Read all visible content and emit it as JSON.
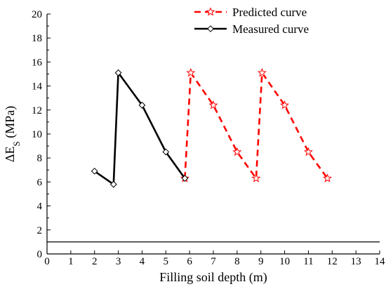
{
  "chart_data": {
    "type": "line",
    "xlabel": "Filling soil depth (m)",
    "ylabel": {
      "prefix": "ΔE",
      "subscript": "S",
      "suffix": " (MPa)"
    },
    "xlim": [
      0,
      14
    ],
    "ylim": [
      0,
      20
    ],
    "x_ticks": [
      "0",
      "1",
      "2",
      "3",
      "4",
      "5",
      "6",
      "7",
      "8",
      "9",
      "10",
      "11",
      "12",
      "13",
      "14"
    ],
    "y_ticks": [
      "0",
      "2",
      "4",
      "6",
      "8",
      "10",
      "12",
      "14",
      "16",
      "18",
      "20"
    ],
    "grid": false,
    "legend_position": "top-right",
    "series": [
      {
        "name": "Predicted curve",
        "color": "#ff0000",
        "line_style": "dashed",
        "marker": "star-icon",
        "x": [
          5.8,
          6.05,
          7,
          8,
          8.8,
          9.05,
          10,
          11,
          11.8
        ],
        "y": [
          6.3,
          15.1,
          12.4,
          8.5,
          6.3,
          15.1,
          12.4,
          8.5,
          6.3
        ]
      },
      {
        "name": "Measured curve",
        "color": "#000000",
        "line_style": "solid",
        "marker": "diamond-icon",
        "x": [
          2,
          2.8,
          3,
          4,
          5,
          5.8
        ],
        "y": [
          6.9,
          5.8,
          15.1,
          12.4,
          8.5,
          6.3
        ]
      }
    ]
  }
}
